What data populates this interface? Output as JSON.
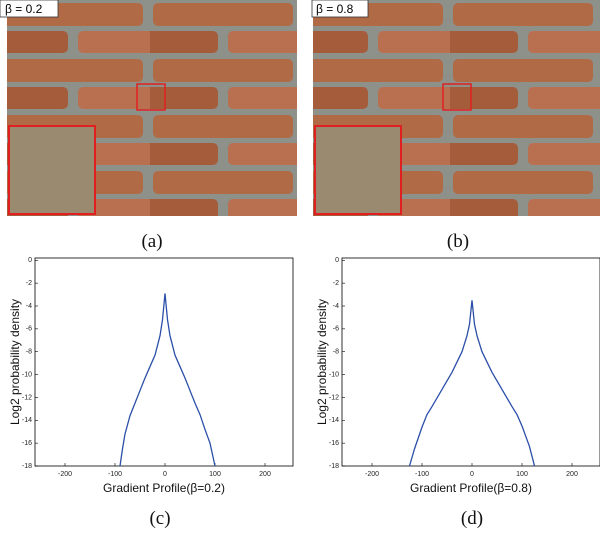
{
  "images": [
    {
      "label": "β = 0.2"
    },
    {
      "label": "β = 0.8"
    }
  ],
  "captions": [
    "(a)",
    "(b)",
    "(c)",
    "(d)"
  ],
  "chart_data": [
    {
      "type": "line",
      "x_label": "Gradient Profile(β=0.2)",
      "y_label": "Log2  probability density",
      "x": [
        -90,
        -85,
        -80,
        -70,
        -60,
        -50,
        -40,
        -30,
        -20,
        -10,
        -5,
        0,
        5,
        10,
        20,
        30,
        40,
        50,
        60,
        70,
        80,
        90,
        100
      ],
      "values": [
        -18,
        -16.5,
        -15.2,
        -13.6,
        -12.5,
        -11.4,
        -10.3,
        -9.3,
        -8.3,
        -6.6,
        -5.2,
        -2.9,
        -5.2,
        -6.6,
        -8.3,
        -9.3,
        -10.3,
        -11.4,
        -12.5,
        -13.5,
        -14.8,
        -16,
        -18
      ],
      "color": "#2b4fa8",
      "xlim": [
        -260,
        256
      ],
      "ylim": [
        -18,
        0.2
      ],
      "xticks": [
        -200,
        -100,
        0,
        100,
        200
      ],
      "yticks": [
        0,
        -2,
        -4,
        -6,
        -8,
        -10,
        -12,
        -14,
        -16,
        -18
      ]
    },
    {
      "type": "line",
      "x_label": "Gradient Profile(β=0.8)",
      "y_label": "Log2  probability density",
      "x": [
        -125,
        -115,
        -100,
        -90,
        -80,
        -60,
        -40,
        -20,
        -10,
        -5,
        0,
        5,
        10,
        20,
        40,
        60,
        80,
        90,
        100,
        115,
        125
      ],
      "values": [
        -18,
        -16.5,
        -14.6,
        -13.5,
        -12.8,
        -11.3,
        -9.8,
        -8,
        -6.6,
        -5.6,
        -3.5,
        -5.6,
        -6.6,
        -8,
        -9.8,
        -11.3,
        -12.8,
        -13.5,
        -14.5,
        -16.3,
        -18
      ],
      "color": "#2b4fa8",
      "xlim": [
        -260,
        256
      ],
      "ylim": [
        -18,
        0.2
      ],
      "xticks": [
        -200,
        -100,
        0,
        100,
        200
      ],
      "yticks": [
        0,
        -2,
        -4,
        -6,
        -8,
        -10,
        -12,
        -14,
        -16,
        -18
      ]
    }
  ]
}
